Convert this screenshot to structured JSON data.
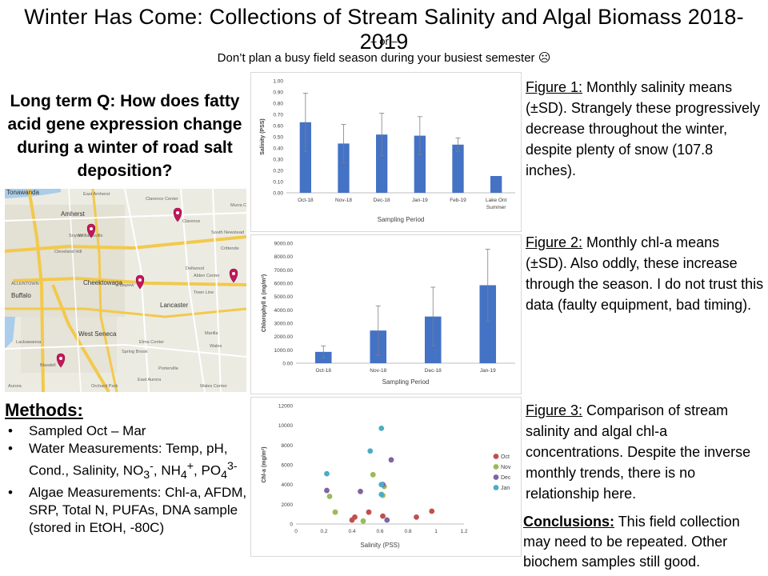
{
  "header": {
    "title": "Winter Has Come: Collections of Stream Salinity and Algal Biomass 2018-2019",
    "subtitle_line1": "– or –",
    "subtitle_line2": "Don’t plan a busy field season during your busiest semester ☹"
  },
  "question": "Long term Q: How does fatty acid gene expression change during a winter of road salt deposition?",
  "map": {
    "labels": [
      "Tonawanda",
      "East Amherst",
      "Clarence Center",
      "Murra Corne",
      "Amherst",
      "Clarence",
      "Snyder",
      "Williamsville",
      "South Newstead",
      "Cleveland Hill",
      "Crittende",
      "Dellwood",
      "Alden Center",
      "ALLENTOWN",
      "Cheektowaga",
      "Depew",
      "Buffalo",
      "Town Line",
      "Lancaster",
      "West Seneca",
      "Marilla",
      "Lackawanna",
      "Elma Center",
      "Wales",
      "Spring Brook",
      "Blasdell",
      "Porterville",
      "Orchard Park",
      "East Aurora",
      "Wales Center",
      "Aurora"
    ],
    "markers": [
      "marker-williamsville",
      "marker-clarence",
      "marker-depew",
      "marker-alden",
      "marker-blasdell"
    ]
  },
  "methods": {
    "title": "Methods:",
    "items": [
      "Sampled Oct – Mar",
      "Water Measurements: Temp, pH, Cond., Salinity, NO3-, NH4+, PO43-",
      "Algae Measurements: Chl-a, AFDM, SRP, Total N, PUFAs, DNA sample (stored in EtOH, -80C)"
    ]
  },
  "chart_data": [
    {
      "type": "bar",
      "title": "",
      "xlabel": "Sampling Period",
      "ylabel": "Salinity (PSS)",
      "categories": [
        "Oct-18",
        "Nov-18",
        "Dec-18",
        "Jan-19",
        "Feb-19",
        "Lake Ont Summer"
      ],
      "values": [
        0.63,
        0.44,
        0.52,
        0.51,
        0.43,
        0.15
      ],
      "errors": [
        0.26,
        0.17,
        0.19,
        0.17,
        0.06,
        null
      ],
      "ylim": [
        0,
        1.0
      ],
      "yticks": [
        "0.00",
        "0.10",
        "0.20",
        "0.30",
        "0.40",
        "0.50",
        "0.60",
        "0.70",
        "0.80",
        "0.90",
        "1.00"
      ],
      "color": "#4472c4"
    },
    {
      "type": "bar",
      "title": "",
      "xlabel": "Sampling Period",
      "ylabel": "Chlorophyll a (mg/m²)",
      "categories": [
        "Oct-18",
        "Nov-18",
        "Dec-18",
        "Jan-19"
      ],
      "values": [
        850,
        2450,
        3500,
        5850
      ],
      "errors": [
        450,
        1850,
        2200,
        2700
      ],
      "ylim": [
        0,
        9000
      ],
      "yticks": [
        "0.00",
        "1000.00",
        "2000.00",
        "3000.00",
        "4000.00",
        "5000.00",
        "6000.00",
        "7000.00",
        "8000.00",
        "9000.00"
      ],
      "color": "#4472c4"
    },
    {
      "type": "scatter",
      "title": "",
      "xlabel": "Salinity (PSS)",
      "ylabel": "Chl-a (mg/m²)",
      "xlim": [
        0,
        1.2
      ],
      "ylim": [
        0,
        12000
      ],
      "xticks": [
        "0",
        "0.2",
        "0.4",
        "0.6",
        "0.8",
        "1",
        "1.2"
      ],
      "yticks": [
        "0",
        "2000",
        "4000",
        "6000",
        "8000",
        "10000",
        "12000"
      ],
      "series": [
        {
          "name": "Oct",
          "color": "#c0504d",
          "points": [
            [
              0.4,
              400
            ],
            [
              0.42,
              700
            ],
            [
              0.52,
              1200
            ],
            [
              0.62,
              800
            ],
            [
              0.86,
              700
            ],
            [
              0.97,
              1300
            ]
          ]
        },
        {
          "name": "Nov",
          "color": "#9bbb59",
          "points": [
            [
              0.24,
              2800
            ],
            [
              0.28,
              1200
            ],
            [
              0.48,
              300
            ],
            [
              0.55,
              5000
            ],
            [
              0.62,
              2900
            ],
            [
              0.63,
              3800
            ]
          ]
        },
        {
          "name": "Dec",
          "color": "#8064a2",
          "points": [
            [
              0.22,
              3400
            ],
            [
              0.46,
              3300
            ],
            [
              0.62,
              4000
            ],
            [
              0.65,
              400
            ],
            [
              0.68,
              6500
            ]
          ]
        },
        {
          "name": "Jan",
          "color": "#4bacc6",
          "points": [
            [
              0.22,
              5100
            ],
            [
              0.53,
              7400
            ],
            [
              0.61,
              9700
            ],
            [
              0.61,
              4000
            ],
            [
              0.61,
              3000
            ]
          ]
        }
      ]
    }
  ],
  "captions": {
    "fig1_label": "Figure 1:",
    "fig1_text": " Monthly salinity means (±SD). Strangely these progressively decrease throughout the winter, despite plenty of snow (107.8 inches).",
    "fig2_label": "Figure 2:",
    "fig2_text": " Monthly chl-a means (±SD). Also oddly, these increase through the season. I do not trust this data (faulty equipment, bad timing).",
    "fig3_label": "Figure 3:",
    "fig3_text": " Comparison of stream salinity and algal chl-a concentrations. Despite the inverse monthly trends, there is no relationship here."
  },
  "conclusions": {
    "label": "Conclusions:",
    "text": "  This field collection may need to be repeated. Other biochem samples still good."
  }
}
